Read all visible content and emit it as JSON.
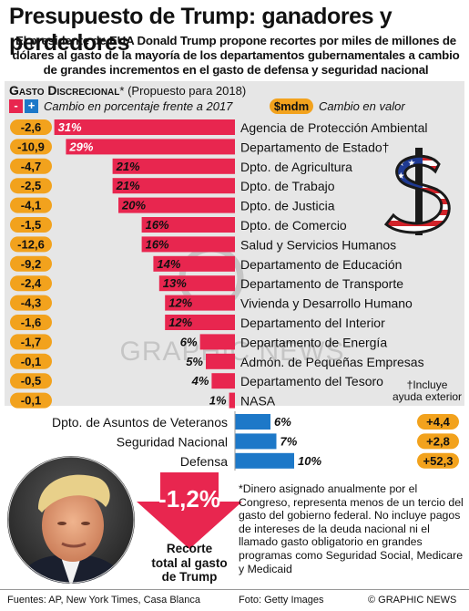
{
  "title": "Presupuesto de Trump: ganadores y perdedores",
  "subtitle": "El presidente de EUA Donald Trump propone recortes por miles de millones de dólares al gasto de la mayoría de los departamentos gubernamentales a cambio de grandes incrementos en el gasto de defensa y seguridad nacional",
  "legend": {
    "heading": "Gasto Discrecional",
    "heading_mark": "*",
    "period": "(Propuesto para 2018)",
    "minus": "-",
    "plus": "+",
    "pct_label": "Cambio en porcentaje frente a 2017",
    "value_badge": "$mdm",
    "value_label": "Cambio en valor"
  },
  "chart_data": {
    "type": "bar",
    "units_pct": "%",
    "units_value": "$mdm",
    "decreases": [
      {
        "name": "Agencia de Protección Ambiental",
        "pct": 31,
        "value": "-2,6"
      },
      {
        "name": "Departamento de Estado",
        "mark": "†",
        "pct": 29,
        "value": "-10,9"
      },
      {
        "name": "Dpto. de Agricultura",
        "pct": 21,
        "value": "-4,7"
      },
      {
        "name": "Dpto. de Trabajo",
        "pct": 21,
        "value": "-2,5"
      },
      {
        "name": "Dpto. de Justicia",
        "pct": 20,
        "value": "-4,1"
      },
      {
        "name": "Dpto. de Comercio",
        "pct": 16,
        "value": "-1,5"
      },
      {
        "name": "Salud y Servicios Humanos",
        "pct": 16,
        "value": "-12,6"
      },
      {
        "name": "Departamento de Educación",
        "pct": 14,
        "value": "-9,2"
      },
      {
        "name": "Departamento de Transporte",
        "pct": 13,
        "value": "-2,4"
      },
      {
        "name": "Vivienda y Desarrollo Humano",
        "pct": 12,
        "value": "-4,3"
      },
      {
        "name": "Departamento del Interior",
        "pct": 12,
        "value": "-1,6"
      },
      {
        "name": "Departamento de Energía",
        "pct": 6,
        "value": "-1,7"
      },
      {
        "name": "Admón. de Pequeñas Empresas",
        "pct": 5,
        "value": "-0,1"
      },
      {
        "name": "Departamento del Tesoro",
        "pct": 4,
        "value": "-0,5"
      },
      {
        "name": "NASA",
        "pct": 1,
        "value": "-0,1"
      }
    ],
    "increases": [
      {
        "name": "Dpto. de Asuntos de Veteranos",
        "pct": 6,
        "value": "+4,4"
      },
      {
        "name": "Seguridad Nacional",
        "pct": 7,
        "value": "+2,8"
      },
      {
        "name": "Defensa",
        "pct": 10,
        "value": "+52,3"
      }
    ]
  },
  "footnote_dagger": {
    "mark": "†",
    "line1": "Incluye",
    "line2": "ayuda exterior"
  },
  "total": {
    "value": "-1,2%",
    "line1": "Recorte",
    "line2": "total al gasto",
    "line3": "de Trump"
  },
  "footnote_star": "*Dinero asignado anualmente por el Congreso, representa menos de un tercio del gasto del gobierno federal. No incluye pagos de intereses de la deuda nacional ni el llamado gasto obligatorio en grandes programas como Seguridad Social, Medicare y Medicaid",
  "footer": {
    "sources": "Fuentes: AP, New York Times, Casa Blanca",
    "photo": "Foto: Getty Images",
    "credit": "© GRAPHIC NEWS"
  },
  "watermark": "GRAPHIC NEWS",
  "colors": {
    "decrease": "#e8264f",
    "increase": "#1d78c8",
    "badge": "#f2a21d",
    "panel": "#e6e6e6",
    "arrow": "#e8264f"
  },
  "icons": [
    "dollar-flag-icon",
    "portrait-photo",
    "down-arrow-icon"
  ]
}
